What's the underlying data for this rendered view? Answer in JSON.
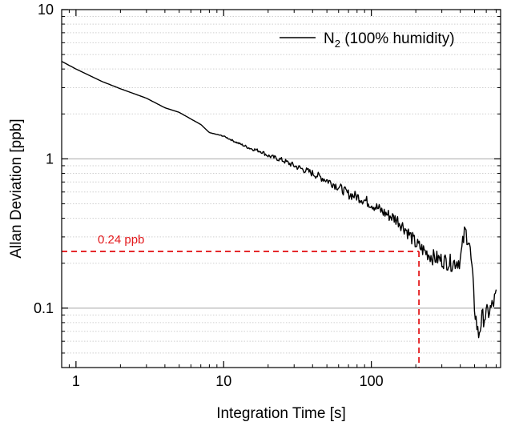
{
  "chart_data": {
    "type": "line",
    "title": "",
    "xlabel": "Integration Time [s]",
    "ylabel": "Allan Deviation [ppb]",
    "xscale": "log",
    "yscale": "log",
    "xlim": [
      0.8,
      750
    ],
    "ylim": [
      0.04,
      10
    ],
    "xticks": [
      {
        "v": 1,
        "label": "1"
      },
      {
        "v": 10,
        "label": "10"
      },
      {
        "v": 100,
        "label": "100"
      }
    ],
    "yticks": [
      {
        "v": 0.1,
        "label": "0.1"
      },
      {
        "v": 1,
        "label": "1"
      },
      {
        "v": 10,
        "label": "10"
      }
    ],
    "grid": "major horizontal solid gray, minor horizontal dotted",
    "legend": {
      "placement": "top-right",
      "label_main": "N",
      "label_sub": "2",
      "label_rest": " (100% humidity)"
    },
    "series": [
      {
        "name": "N2 (100% humidity)",
        "color": "#000000",
        "x": [
          0.8,
          1,
          1.5,
          2,
          3,
          4,
          5,
          6,
          7,
          8,
          10,
          12,
          15,
          18,
          20,
          25,
          30,
          40,
          50,
          60,
          70,
          80,
          100,
          120,
          150,
          170,
          200,
          230,
          260,
          300,
          350,
          400,
          430,
          460,
          480,
          500,
          530,
          560,
          600,
          650,
          700
        ],
        "y": [
          4.5,
          4.0,
          3.3,
          2.95,
          2.55,
          2.2,
          2.05,
          1.85,
          1.7,
          1.5,
          1.42,
          1.3,
          1.18,
          1.12,
          1.05,
          0.98,
          0.9,
          0.8,
          0.72,
          0.65,
          0.58,
          0.56,
          0.5,
          0.44,
          0.39,
          0.34,
          0.27,
          0.24,
          0.22,
          0.21,
          0.2,
          0.21,
          0.33,
          0.28,
          0.18,
          0.1,
          0.065,
          0.085,
          0.09,
          0.1,
          0.12
        ]
      }
    ],
    "annotation": {
      "text": "0.24 ppb",
      "y": 0.24,
      "x": 210,
      "color": "#e3191c"
    }
  }
}
